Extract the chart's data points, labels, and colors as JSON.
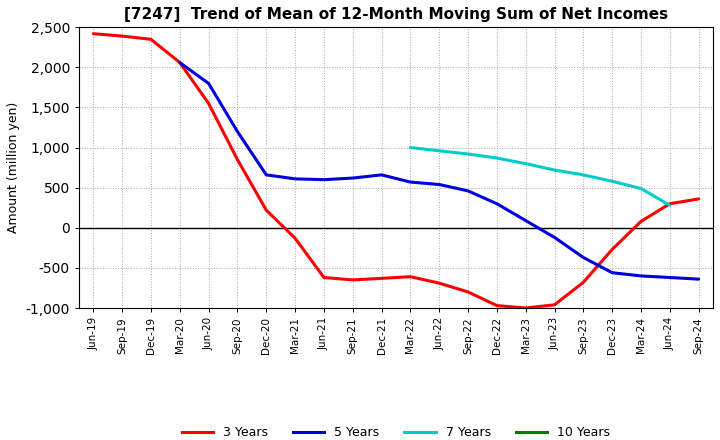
{
  "title": "[7247]  Trend of Mean of 12-Month Moving Sum of Net Incomes",
  "ylabel": "Amount (million yen)",
  "ylim": [
    -1000,
    2500
  ],
  "yticks": [
    -1000,
    -500,
    0,
    500,
    1000,
    1500,
    2000,
    2500
  ],
  "background_color": "#ffffff",
  "plot_bg_color": "#ffffff",
  "x_labels": [
    "Jun-19",
    "Sep-19",
    "Dec-19",
    "Mar-20",
    "Jun-20",
    "Sep-20",
    "Dec-20",
    "Mar-21",
    "Jun-21",
    "Sep-21",
    "Dec-21",
    "Mar-22",
    "Jun-22",
    "Sep-22",
    "Dec-22",
    "Mar-23",
    "Jun-23",
    "Sep-23",
    "Dec-23",
    "Mar-24",
    "Jun-24",
    "Sep-24"
  ],
  "series": {
    "3 Years": {
      "color": "#ff0000",
      "values_x": [
        0,
        1,
        2,
        3,
        4,
        5,
        6,
        7,
        8,
        9,
        10,
        11,
        12,
        13,
        14,
        15,
        16,
        17,
        18,
        19,
        20,
        21
      ],
      "values_y": [
        2420,
        2390,
        2350,
        2060,
        1550,
        850,
        220,
        -130,
        -620,
        -650,
        -630,
        -610,
        -690,
        -800,
        -970,
        -1000,
        -960,
        -680,
        -270,
        80,
        300,
        360
      ]
    },
    "5 Years": {
      "color": "#0000dd",
      "values_x": [
        3,
        4,
        5,
        6,
        7,
        8,
        9,
        10,
        11,
        12,
        13,
        14,
        15,
        16,
        17,
        18,
        19,
        20,
        21
      ],
      "values_y": [
        2060,
        1800,
        1200,
        660,
        610,
        600,
        620,
        660,
        570,
        540,
        460,
        300,
        90,
        -120,
        -370,
        -560,
        -600,
        -620,
        -640
      ]
    },
    "7 Years": {
      "color": "#00cccc",
      "values_x": [
        11,
        12,
        13,
        14,
        15,
        16,
        17,
        18,
        19,
        20
      ],
      "values_y": [
        1000,
        960,
        920,
        870,
        800,
        720,
        660,
        580,
        490,
        280
      ]
    },
    "10 Years": {
      "color": "#008000",
      "values_x": [],
      "values_y": []
    }
  },
  "legend_labels": [
    "3 Years",
    "5 Years",
    "7 Years",
    "10 Years"
  ],
  "legend_colors": [
    "#ff0000",
    "#0000dd",
    "#00cccc",
    "#008000"
  ]
}
